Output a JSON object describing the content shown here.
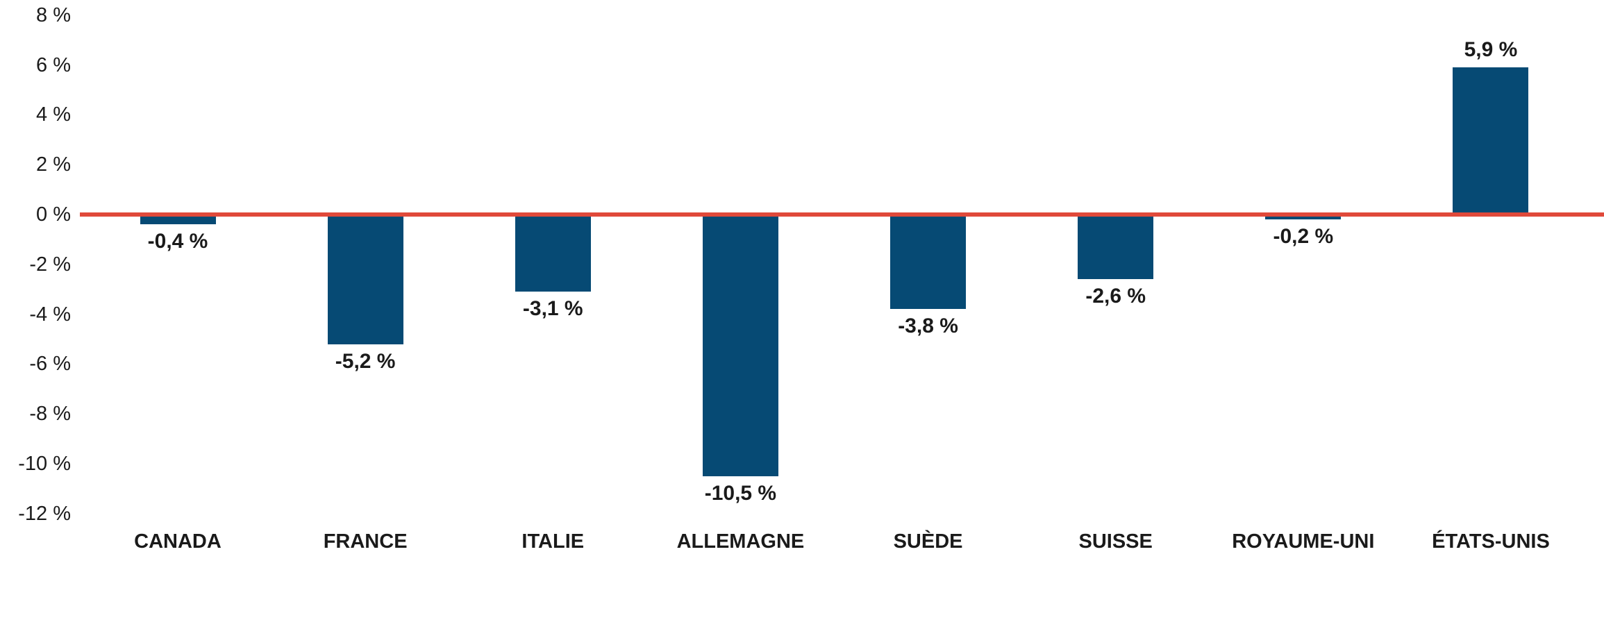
{
  "chart_data": {
    "type": "bar",
    "categories": [
      "CANADA",
      "FRANCE",
      "ITALIE",
      "ALLEMAGNE",
      "SUÈDE",
      "SUISSE",
      "ROYAUME-UNI",
      "ÉTATS-UNIS"
    ],
    "values": [
      -0.4,
      -5.2,
      -3.1,
      -10.5,
      -3.8,
      -2.6,
      -0.2,
      5.9
    ],
    "value_labels": [
      "-0,4 %",
      "-5,2 %",
      "-3,1 %",
      "-10,5 %",
      "-3,8 %",
      "-2,6 %",
      "-0,2 %",
      "5,9 %"
    ],
    "y_ticks": [
      "8 %",
      "6 %",
      "4 %",
      "2 %",
      "0 %",
      "-2 %",
      "-4 %",
      "-6 %",
      "-8 %",
      "-10 %",
      "-12 %"
    ],
    "y_tick_values": [
      8,
      6,
      4,
      2,
      0,
      -2,
      -4,
      -6,
      -8,
      -10,
      -12
    ],
    "ylim": [
      -12,
      8
    ],
    "title": "",
    "xlabel": "",
    "ylabel": "",
    "grid": false,
    "legend": false,
    "bar_color": "#064a74",
    "zero_line_color": "#e0493a",
    "text_color": "#1a1a1a"
  }
}
